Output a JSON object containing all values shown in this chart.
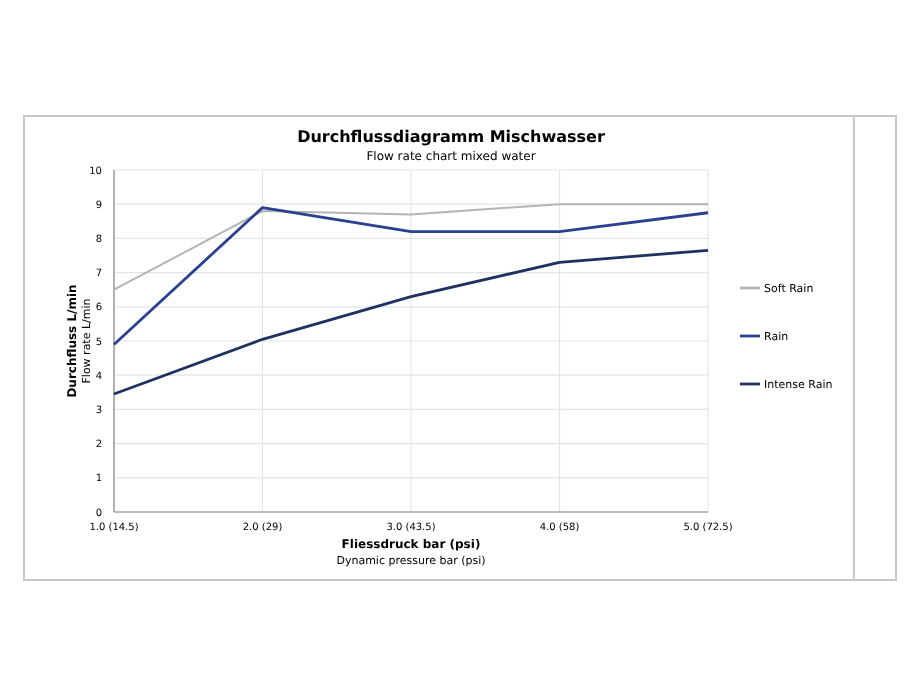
{
  "chart_data": {
    "type": "line",
    "title": "Durchflussdiagramm Mischwasser",
    "subtitle": "Flow rate chart mixed water",
    "xlabel": "Fliessdruck bar (psi)\nDynamic pressure bar (psi)",
    "ylabel": "Durchfluss L/min\nFlow rate L/min",
    "categories": [
      "1.0 (14.5)",
      "2.0 (29)",
      "3.0 (43.5)",
      "4.0 (58)",
      "5.0 (72.5)"
    ],
    "series": [
      {
        "name": "Soft Rain",
        "color": "#b4b4b4",
        "values": [
          6.5,
          8.8,
          8.7,
          9.0,
          9.0
        ]
      },
      {
        "name": "Rain",
        "color": "#2a4190",
        "values": [
          4.9,
          8.9,
          8.2,
          8.2,
          8.75
        ]
      },
      {
        "name": "Intense Rain",
        "color": "#1f3160",
        "values": [
          3.45,
          5.05,
          6.3,
          7.3,
          7.65
        ]
      }
    ],
    "ylim": [
      0,
      10
    ],
    "yticks": [
      0,
      1,
      2,
      3,
      4,
      5,
      6,
      7,
      8,
      9,
      10
    ],
    "grid": true,
    "legend": "right"
  }
}
